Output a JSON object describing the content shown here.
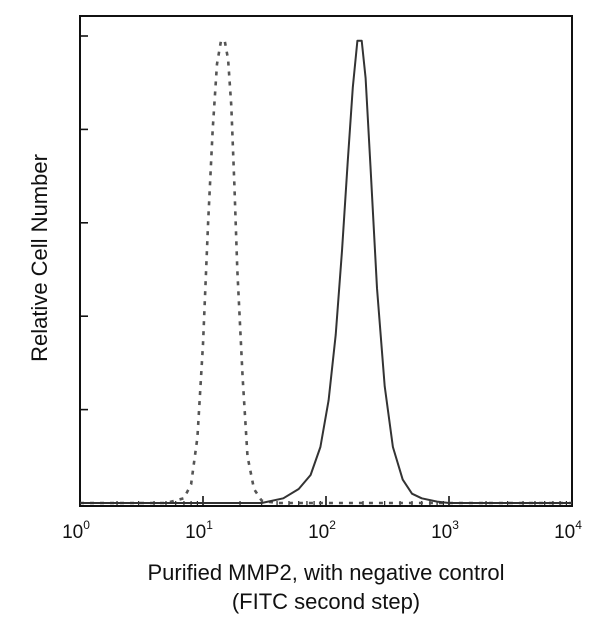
{
  "chart_data": {
    "type": "line",
    "title": "",
    "xlabel": "Purified MMP2, with negative control",
    "xlabel_line2": "(FITC second step)",
    "ylabel": "Relative Cell Number",
    "x_scale": "log",
    "xlim": [
      1,
      10000
    ],
    "ylim": [
      0,
      1.0
    ],
    "x_ticks": [
      {
        "base": "10",
        "exp": "0",
        "value": 1
      },
      {
        "base": "10",
        "exp": "1",
        "value": 10
      },
      {
        "base": "10",
        "exp": "2",
        "value": 100
      },
      {
        "base": "10",
        "exp": "3",
        "value": 1000
      },
      {
        "base": "10",
        "exp": "4",
        "value": 10000
      }
    ],
    "series": [
      {
        "name": "negative control",
        "style": "dashed",
        "color": "#555555",
        "x": [
          1,
          5,
          7,
          8,
          9,
          10,
          11,
          12,
          13,
          14,
          15,
          16,
          17,
          18,
          19,
          21,
          23,
          26,
          30,
          40,
          100,
          1000,
          10000
        ],
        "y": [
          0,
          0,
          0.01,
          0.04,
          0.14,
          0.34,
          0.6,
          0.8,
          0.94,
          0.99,
          0.99,
          0.95,
          0.85,
          0.68,
          0.5,
          0.27,
          0.1,
          0.03,
          0.005,
          0,
          0,
          0,
          0
        ]
      },
      {
        "name": "MMP2",
        "style": "solid",
        "color": "#333333",
        "x": [
          1,
          30,
          45,
          60,
          75,
          90,
          105,
          120,
          135,
          150,
          165,
          180,
          195,
          210,
          230,
          260,
          300,
          350,
          420,
          500,
          600,
          800,
          1000,
          10000
        ],
        "y": [
          0,
          0,
          0.01,
          0.03,
          0.06,
          0.12,
          0.22,
          0.36,
          0.54,
          0.73,
          0.89,
          0.99,
          0.99,
          0.91,
          0.72,
          0.46,
          0.25,
          0.12,
          0.05,
          0.02,
          0.01,
          0.003,
          0,
          0
        ]
      }
    ]
  }
}
